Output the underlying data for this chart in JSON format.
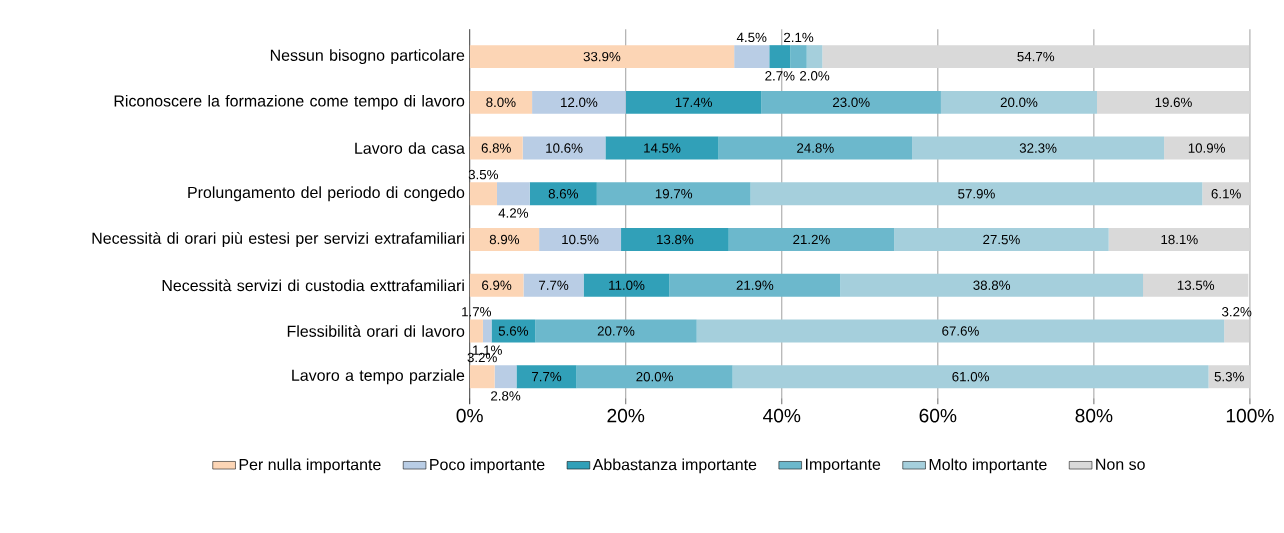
{
  "chart_data": {
    "type": "bar",
    "orientation": "horizontal",
    "stacked": true,
    "grid": "x",
    "legend": "bottom",
    "categories": [
      "Nessun bisogno particolare",
      "Riconoscere la formazione come tempo di lavoro",
      "Lavoro da casa",
      "Prolungamento del periodo di congedo",
      "Necessità di orari più estesi per servizi extrafamiliari",
      "Necessità servizi di custodia exttrafamiliari",
      "Flessibilità orari di lavoro",
      "Lavoro a tempo parziale"
    ],
    "xlim": [
      0,
      100
    ],
    "xticks": [
      {
        "value": 0,
        "label": "0%"
      },
      {
        "value": 20,
        "label": "20%"
      },
      {
        "value": 40,
        "label": "40%"
      },
      {
        "value": 60,
        "label": "60%"
      },
      {
        "value": 80,
        "label": "80%"
      },
      {
        "value": 100,
        "label": "100%"
      }
    ],
    "series": [
      {
        "name": "Per nulla importante",
        "color": "#fcd5b5",
        "values": [
          33.9,
          8.0,
          6.8,
          3.5,
          8.9,
          6.9,
          1.7,
          3.2
        ],
        "value_labels": [
          "33.9%",
          "8.0%",
          "6.8%",
          "3.5%",
          "8.9%",
          "6.9%",
          "1.7%",
          "3.2%"
        ]
      },
      {
        "name": "Poco importante",
        "color": "#b9cde5",
        "values": [
          4.5,
          12.0,
          10.6,
          4.2,
          10.5,
          7.7,
          1.1,
          2.8
        ],
        "value_labels": [
          "4.5%",
          "12.0%",
          "10.6%",
          "4.2%",
          "10.5%",
          "7.7%",
          "1.1%",
          "2.8%"
        ]
      },
      {
        "name": "Abbastanza importante",
        "color": "#31a0b8",
        "values": [
          2.7,
          17.4,
          14.5,
          8.6,
          13.8,
          11.0,
          5.6,
          7.7
        ],
        "value_labels": [
          "2.7%",
          "17.4%",
          "14.5%",
          "8.6%",
          "13.8%",
          "11.0%",
          "5.6%",
          "7.7%"
        ]
      },
      {
        "name": "Importante",
        "color": "#6cb8cc",
        "values": [
          2.1,
          23.0,
          24.8,
          19.7,
          21.2,
          21.9,
          20.7,
          20.0
        ],
        "value_labels": [
          "2.1%",
          "23.0%",
          "24.8%",
          "19.7%",
          "21.2%",
          "21.9%",
          "20.7%",
          "20.0%"
        ]
      },
      {
        "name": "Molto importante",
        "color": "#a5cfdc",
        "values": [
          2.0,
          20.0,
          32.3,
          57.9,
          27.5,
          38.8,
          67.6,
          61.0
        ],
        "value_labels": [
          "2.0%",
          "20.0%",
          "32.3%",
          "57.9%",
          "27.5%",
          "38.8%",
          "67.6%",
          "61.0%"
        ]
      },
      {
        "name": "Non so",
        "color": "#d9d9d9",
        "values": [
          54.7,
          19.6,
          10.9,
          6.1,
          18.1,
          13.5,
          3.2,
          5.3
        ],
        "value_labels": [
          "54.7%",
          "19.6%",
          "10.9%",
          "6.1%",
          "18.1%",
          "13.5%",
          "3.2%",
          "5.3%"
        ]
      }
    ]
  }
}
